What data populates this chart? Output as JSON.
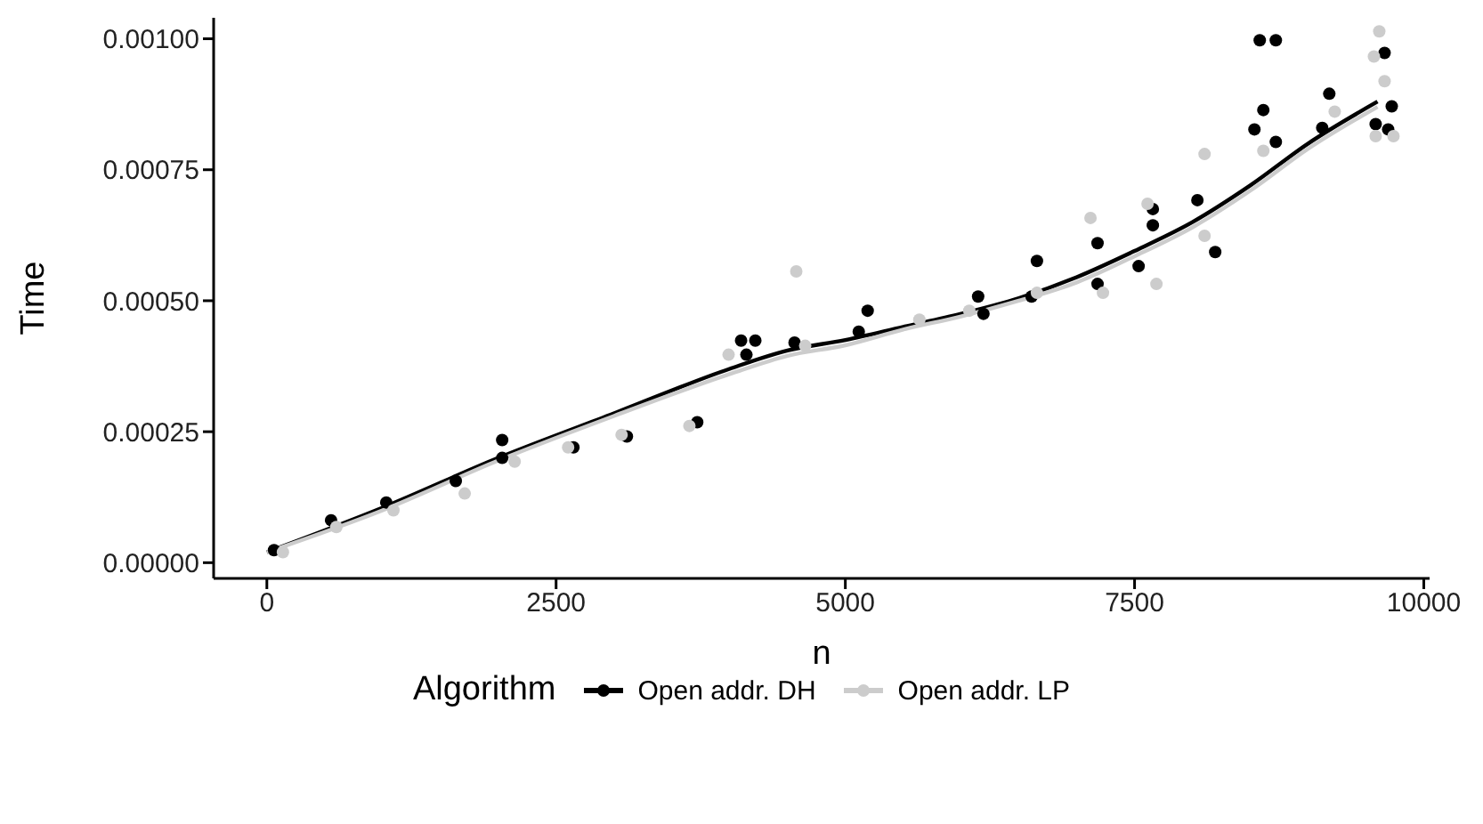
{
  "chart_data": {
    "type": "scatter",
    "xlabel": "n",
    "ylabel": "Time",
    "legend_title": "Algorithm",
    "legend": "bottom",
    "marker": "circle",
    "grid": false,
    "xlim": [
      -460,
      10050
    ],
    "xticks": [
      0,
      2500,
      5000,
      7500,
      10000
    ],
    "ylim": [
      -3e-05,
      0.00104
    ],
    "yticks": [
      {
        "value": 0,
        "label": "0.00000"
      },
      {
        "value": 0.00025,
        "label": "0.00025"
      },
      {
        "value": 0.0005,
        "label": "0.00050"
      },
      {
        "value": 0.00075,
        "label": "0.00075"
      },
      {
        "value": 0.001,
        "label": "0.00100"
      }
    ],
    "series": [
      {
        "name": "Open addr. DH",
        "color": "#000000",
        "x": [
          62,
          555,
          1032,
          1633,
          2034,
          2034,
          2650,
          3112,
          3720,
          4099,
          4222,
          4145,
          4561,
          5193,
          5116,
          6194,
          6148,
          6610,
          6656,
          7180,
          7180,
          7535,
          7658,
          7658,
          8043,
          8197,
          8582,
          8721,
          8613,
          8536,
          8721,
          9183,
          9122,
          9661,
          9723,
          9584,
          9692
        ],
        "values": [
          2.4e-05,
          8.1e-05,
          0.000115,
          0.000156,
          0.000234,
          0.0002,
          0.00022,
          0.000241,
          0.000268,
          0.000424,
          0.000424,
          0.000397,
          0.00042,
          0.000481,
          0.000441,
          0.000475,
          0.000508,
          0.000508,
          0.000576,
          0.00061,
          0.000532,
          0.000566,
          0.000644,
          0.000675,
          0.000692,
          0.000593,
          0.000997,
          0.000997,
          0.000864,
          0.000827,
          0.000803,
          0.000895,
          0.00083,
          0.000973,
          0.000871,
          0.000837,
          0.000827
        ]
      },
      {
        "name": "Open addr. LP",
        "color": "#cccccc",
        "x": [
          139,
          601,
          1094,
          1710,
          2142,
          2604,
          3066,
          3652,
          3991,
          4576,
          4653,
          5640,
          6071,
          6656,
          7119,
          7227,
          7612,
          7689,
          8105,
          8105,
          8613,
          9230,
          9615,
          9569,
          9661,
          9584,
          9738
        ],
        "values": [
          2e-05,
          6.8e-05,
          0.0001,
          0.000132,
          0.000193,
          0.00022,
          0.000244,
          0.000261,
          0.000397,
          0.000556,
          0.000414,
          0.000464,
          0.000481,
          0.000515,
          0.000658,
          0.000515,
          0.000685,
          0.000532,
          0.00078,
          0.000624,
          0.000786,
          0.000861,
          0.001014,
          0.000966,
          0.000919,
          0.000814,
          0.000814
        ]
      },
      {
        "type": "line",
        "marker": "none",
        "color": "#000000",
        "x": [
          0,
          1000,
          2000,
          3000,
          4000,
          4500,
          5000,
          5500,
          6000,
          6500,
          7000,
          7500,
          8000,
          8500,
          9000,
          9600
        ],
        "values": [
          2e-05,
          0.000105,
          0.0002,
          0.000285,
          0.00037,
          0.000405,
          0.000425,
          0.00045,
          0.000475,
          0.000505,
          0.000545,
          0.000595,
          0.00065,
          0.00072,
          0.0008,
          0.00088
        ]
      },
      {
        "type": "line",
        "marker": "none",
        "color": "#cccccc",
        "x": [
          0,
          1000,
          2000,
          3000,
          4000,
          4500,
          5000,
          5500,
          6000,
          6500,
          7000,
          7500,
          8000,
          8500,
          9000,
          9600
        ],
        "values": [
          2e-05,
          0.0001,
          0.000195,
          0.00028,
          0.00036,
          0.000395,
          0.000415,
          0.000445,
          0.00047,
          0.0005,
          0.000535,
          0.000585,
          0.00064,
          0.00071,
          0.00079,
          0.00087
        ]
      }
    ]
  }
}
